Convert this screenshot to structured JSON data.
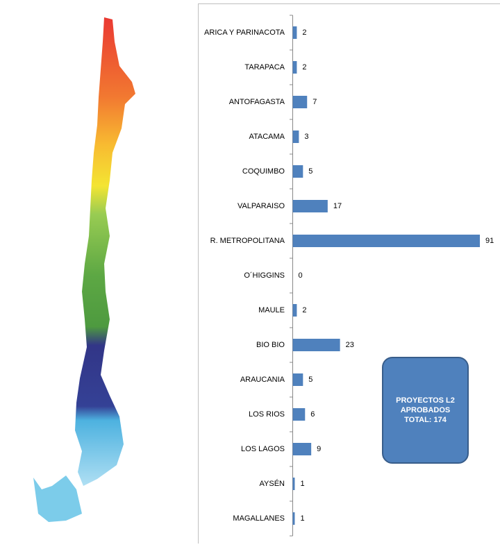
{
  "chart_data": {
    "type": "bar",
    "orientation": "horizontal",
    "categories": [
      "ARICA Y PARINACOTA",
      "TARAPACA",
      "ANTOFAGASTA",
      "ATACAMA",
      "COQUIMBO",
      "VALPARAISO",
      "R. METROPOLITANA",
      "O´HIGGINS",
      "MAULE",
      "BIO BIO",
      "ARAUCANIA",
      "LOS RIOS",
      "LOS LAGOS",
      "AYSÉN",
      "MAGALLANES"
    ],
    "values": [
      2,
      2,
      7,
      3,
      5,
      17,
      91,
      0,
      2,
      23,
      5,
      6,
      9,
      1,
      1
    ],
    "color": "#4f81bd",
    "annotation": [
      "PROYECTOS L2",
      "APROBADOS",
      "TOTAL: 174"
    ]
  }
}
